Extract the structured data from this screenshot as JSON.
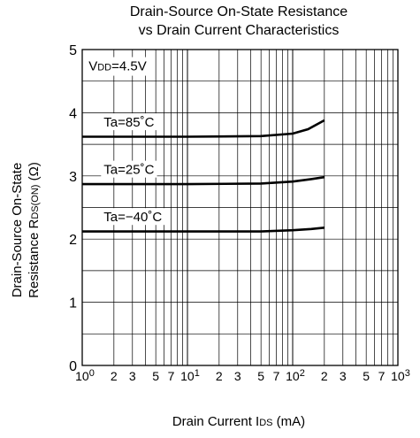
{
  "chart_data": {
    "type": "line",
    "title_line1": "Drain-Source On-State Resistance",
    "title_line2": "vs Drain Current Characteristics",
    "ylabel_line1": "Drain-Source On-State",
    "ylabel_line2_prefix": "Resistance  R",
    "ylabel_line2_sub": "DS(ON)",
    "ylabel_line2_suffix": " (Ω)",
    "xlabel_prefix": "Drain Current  I",
    "xlabel_sub": "DS",
    "xlabel_suffix": " (mA)",
    "condition_main": "V",
    "condition_sub": "DD",
    "condition_value": "=4.5V",
    "x_scale": "log",
    "xlim": [
      1,
      1000
    ],
    "ylim": [
      0,
      5
    ],
    "y_ticks": [
      "0",
      "1",
      "2",
      "3",
      "4",
      "5"
    ],
    "x_tick_labels": [
      {
        "x": 1,
        "base": "10",
        "exp": "0"
      },
      {
        "x": 2,
        "text": "2"
      },
      {
        "x": 3,
        "text": "3"
      },
      {
        "x": 5,
        "text": "5"
      },
      {
        "x": 7,
        "text": "7"
      },
      {
        "x": 10,
        "base": "10",
        "exp": "1"
      },
      {
        "x": 20,
        "text": "2"
      },
      {
        "x": 30,
        "text": "3"
      },
      {
        "x": 50,
        "text": "5"
      },
      {
        "x": 70,
        "text": "7"
      },
      {
        "x": 100,
        "base": "10",
        "exp": "2"
      },
      {
        "x": 200,
        "text": "2"
      },
      {
        "x": 300,
        "text": "3"
      },
      {
        "x": 500,
        "text": "5"
      },
      {
        "x": 700,
        "text": "7"
      },
      {
        "x": 1000,
        "base": "10",
        "exp": "3"
      }
    ],
    "grid": true,
    "series": [
      {
        "name": "Ta=85˚C",
        "label_x": 1.6,
        "label_y": 3.78,
        "x": [
          1,
          10,
          50,
          100,
          140,
          200
        ],
        "y": [
          3.62,
          3.62,
          3.63,
          3.67,
          3.74,
          3.88
        ]
      },
      {
        "name": "Ta=25˚C",
        "label_x": 1.6,
        "label_y": 3.03,
        "x": [
          1,
          10,
          50,
          100,
          150,
          200
        ],
        "y": [
          2.87,
          2.87,
          2.88,
          2.91,
          2.95,
          2.98
        ]
      },
      {
        "name": "Ta=−40˚C",
        "label_x": 1.6,
        "label_y": 2.28,
        "x": [
          1,
          10,
          50,
          100,
          150,
          200
        ],
        "y": [
          2.12,
          2.12,
          2.12,
          2.14,
          2.16,
          2.18
        ]
      }
    ]
  }
}
